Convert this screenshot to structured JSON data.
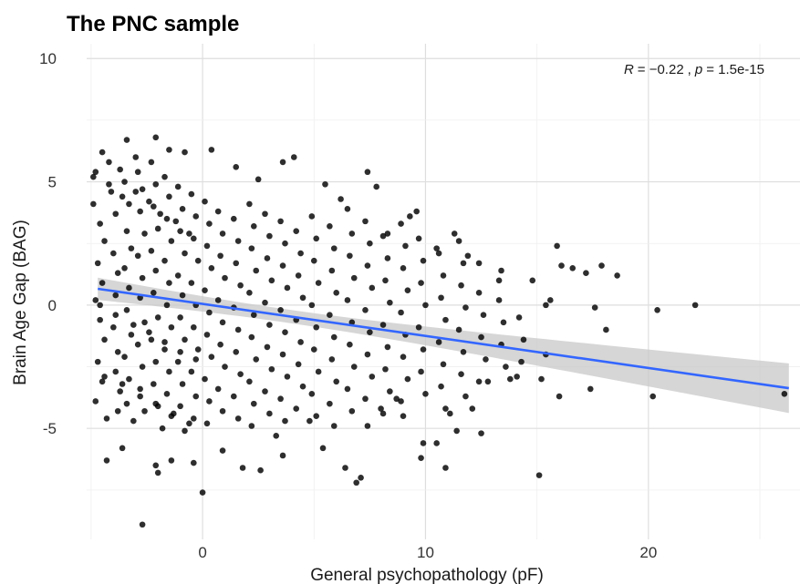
{
  "chart_data": {
    "type": "scatter",
    "title": "The PNC sample",
    "xlabel": "General psychopathology (pF)",
    "ylabel": "Brain Age Gap (BAG)",
    "xlim": [
      -5.2,
      26.8
    ],
    "ylim": [
      -9.5,
      10.6
    ],
    "xticks": [
      0,
      10,
      20
    ],
    "xtick_labels": [
      "0",
      "10",
      "20"
    ],
    "yticks": [
      -5,
      0,
      5,
      10
    ],
    "ytick_labels": [
      "-5",
      "0",
      "5",
      "10"
    ],
    "grid": true,
    "colors": {
      "points": "#000000",
      "line": "#3366ff",
      "band": "#c8c8c8"
    },
    "annotation": {
      "R_label": "R",
      "R_value": "= −0.22",
      "sep": ",",
      "p_label": "p",
      "p_value": "= 1.5e-15"
    },
    "regression": {
      "slope": -0.13,
      "intercept": 0.05,
      "x_range": [
        -4.7,
        26.3
      ]
    },
    "points": [
      [
        -4.5,
        6.2
      ],
      [
        -3.4,
        6.7
      ],
      [
        -2.1,
        6.8
      ],
      [
        -4.8,
        5.4
      ],
      [
        -4.2,
        5.8
      ],
      [
        -3.7,
        5.5
      ],
      [
        -3.0,
        6.0
      ],
      [
        -1.5,
        6.3
      ],
      [
        -0.8,
        6.2
      ],
      [
        0.4,
        6.3
      ],
      [
        1.5,
        5.6
      ],
      [
        2.5,
        5.1
      ],
      [
        3.6,
        5.8
      ],
      [
        4.1,
        6.0
      ],
      [
        5.5,
        4.9
      ],
      [
        6.2,
        4.3
      ],
      [
        7.4,
        5.4
      ],
      [
        7.8,
        4.8
      ],
      [
        8.3,
        2.9
      ],
      [
        9.3,
        3.6
      ],
      [
        9.6,
        3.8
      ],
      [
        10.5,
        2.3
      ],
      [
        11.3,
        2.9
      ],
      [
        11.9,
        2.0
      ],
      [
        12.4,
        1.7
      ],
      [
        13.3,
        1.0
      ],
      [
        13.4,
        1.4
      ],
      [
        14.8,
        1.0
      ],
      [
        15.4,
        0.0
      ],
      [
        15.6,
        0.2
      ],
      [
        15.9,
        2.4
      ],
      [
        16.1,
        1.6
      ],
      [
        16.6,
        1.5
      ],
      [
        17.2,
        1.3
      ],
      [
        17.9,
        1.6
      ],
      [
        18.6,
        1.2
      ],
      [
        17.6,
        -0.1
      ],
      [
        18.1,
        -1.0
      ],
      [
        20.4,
        -0.2
      ],
      [
        22.1,
        0.0
      ],
      [
        20.2,
        -3.7
      ],
      [
        26.1,
        -3.6
      ],
      [
        17.4,
        -3.4
      ],
      [
        16.0,
        -3.7
      ],
      [
        15.2,
        -3.0
      ],
      [
        15.4,
        -2.0
      ],
      [
        15.1,
        -6.9
      ],
      [
        14.1,
        -2.9
      ],
      [
        13.8,
        -3.0
      ],
      [
        12.5,
        -5.2
      ],
      [
        12.1,
        -4.2
      ],
      [
        11.4,
        -5.1
      ],
      [
        10.9,
        -6.6
      ],
      [
        10.5,
        -5.6
      ],
      [
        9.8,
        -6.2
      ],
      [
        9.9,
        -5.6
      ],
      [
        8.7,
        -3.8
      ],
      [
        8.0,
        -4.2
      ],
      [
        7.1,
        -7.0
      ],
      [
        6.4,
        -6.6
      ],
      [
        5.4,
        -5.8
      ],
      [
        4.8,
        -4.7
      ],
      [
        3.6,
        -6.1
      ],
      [
        2.6,
        -6.7
      ],
      [
        1.8,
        -6.6
      ],
      [
        0.9,
        -5.9
      ],
      [
        0.0,
        -7.6
      ],
      [
        -0.4,
        -6.4
      ],
      [
        -1.4,
        -6.3
      ],
      [
        -2.1,
        -6.5
      ],
      [
        -2.7,
        -8.9
      ],
      [
        -3.6,
        -5.8
      ],
      [
        -4.3,
        -6.3
      ],
      [
        -2.0,
        -6.8
      ],
      [
        6.9,
        -7.2
      ],
      [
        3.3,
        -5.3
      ],
      [
        7.4,
        -4.9
      ],
      [
        9.0,
        -4.5
      ],
      [
        11.1,
        -4.4
      ],
      [
        12.8,
        -3.1
      ],
      [
        -4.9,
        4.1
      ],
      [
        -4.6,
        3.3
      ],
      [
        -4.4,
        2.6
      ],
      [
        -4.7,
        1.7
      ],
      [
        -4.5,
        0.9
      ],
      [
        -4.8,
        0.2
      ],
      [
        -4.6,
        -0.6
      ],
      [
        -4.4,
        -1.4
      ],
      [
        -4.7,
        -2.3
      ],
      [
        -4.5,
        -3.1
      ],
      [
        -4.8,
        -3.9
      ],
      [
        -4.3,
        -4.6
      ],
      [
        -4.1,
        4.6
      ],
      [
        -3.9,
        3.7
      ],
      [
        -4.0,
        2.1
      ],
      [
        -3.8,
        1.3
      ],
      [
        -3.9,
        0.4
      ],
      [
        -4.0,
        -0.9
      ],
      [
        -3.8,
        -1.9
      ],
      [
        -3.9,
        -2.7
      ],
      [
        -3.7,
        -3.5
      ],
      [
        -3.8,
        -4.3
      ],
      [
        -3.5,
        5.0
      ],
      [
        -3.3,
        4.1
      ],
      [
        -3.4,
        3.0
      ],
      [
        -3.2,
        2.3
      ],
      [
        -3.5,
        1.5
      ],
      [
        -3.3,
        0.7
      ],
      [
        -3.4,
        -0.2
      ],
      [
        -3.2,
        -1.2
      ],
      [
        -3.5,
        -2.1
      ],
      [
        -3.3,
        -3.0
      ],
      [
        -3.4,
        -4.0
      ],
      [
        -3.1,
        -4.7
      ],
      [
        -2.9,
        5.4
      ],
      [
        -2.7,
        4.7
      ],
      [
        -2.8,
        3.8
      ],
      [
        -2.6,
        2.9
      ],
      [
        -2.9,
        2.0
      ],
      [
        -2.7,
        1.1
      ],
      [
        -2.8,
        0.3
      ],
      [
        -2.6,
        -0.7
      ],
      [
        -2.9,
        -1.6
      ],
      [
        -2.7,
        -2.5
      ],
      [
        -2.8,
        -3.4
      ],
      [
        -2.6,
        -4.3
      ],
      [
        -2.3,
        5.8
      ],
      [
        -2.1,
        4.9
      ],
      [
        -2.2,
        4.0
      ],
      [
        -2.0,
        3.1
      ],
      [
        -2.3,
        2.2
      ],
      [
        -2.1,
        1.4
      ],
      [
        -2.2,
        0.5
      ],
      [
        -2.0,
        -0.5
      ],
      [
        -2.3,
        -1.4
      ],
      [
        -2.1,
        -2.3
      ],
      [
        -2.2,
        -3.2
      ],
      [
        -2.0,
        -4.1
      ],
      [
        -1.8,
        -5.0
      ],
      [
        -1.7,
        5.2
      ],
      [
        -1.5,
        4.4
      ],
      [
        -1.6,
        3.5
      ],
      [
        -1.4,
        2.6
      ],
      [
        -1.7,
        1.8
      ],
      [
        -1.5,
        0.9
      ],
      [
        -1.6,
        0.0
      ],
      [
        -1.4,
        -0.9
      ],
      [
        -1.7,
        -1.8
      ],
      [
        -1.5,
        -2.7
      ],
      [
        -1.6,
        -3.6
      ],
      [
        -1.4,
        -4.5
      ],
      [
        -1.1,
        4.8
      ],
      [
        -0.9,
        3.9
      ],
      [
        -1.0,
        3.0
      ],
      [
        -0.8,
        2.1
      ],
      [
        -1.1,
        1.2
      ],
      [
        -0.9,
        0.4
      ],
      [
        -1.0,
        -0.5
      ],
      [
        -0.8,
        -1.4
      ],
      [
        -1.1,
        -2.3
      ],
      [
        -0.9,
        -3.2
      ],
      [
        -1.0,
        -4.1
      ],
      [
        -0.8,
        -5.1
      ],
      [
        -0.5,
        4.5
      ],
      [
        -0.3,
        3.6
      ],
      [
        -0.4,
        2.7
      ],
      [
        -0.2,
        1.8
      ],
      [
        -0.5,
        0.9
      ],
      [
        -0.3,
        0.0
      ],
      [
        -0.4,
        -0.9
      ],
      [
        -0.2,
        -1.8
      ],
      [
        -0.5,
        -2.7
      ],
      [
        -0.3,
        -3.7
      ],
      [
        -0.4,
        -4.6
      ],
      [
        0.1,
        4.2
      ],
      [
        0.3,
        3.3
      ],
      [
        0.2,
        2.4
      ],
      [
        0.4,
        1.5
      ],
      [
        0.1,
        0.6
      ],
      [
        0.3,
        -0.3
      ],
      [
        0.2,
        -1.2
      ],
      [
        0.4,
        -2.1
      ],
      [
        0.1,
        -3.0
      ],
      [
        0.3,
        -3.9
      ],
      [
        0.2,
        -4.8
      ],
      [
        0.7,
        3.8
      ],
      [
        0.9,
        2.9
      ],
      [
        0.8,
        2.0
      ],
      [
        1.0,
        1.1
      ],
      [
        0.7,
        0.2
      ],
      [
        0.9,
        -0.7
      ],
      [
        0.8,
        -1.6
      ],
      [
        1.0,
        -2.5
      ],
      [
        0.7,
        -3.4
      ],
      [
        0.9,
        -4.3
      ],
      [
        1.4,
        3.5
      ],
      [
        1.6,
        2.6
      ],
      [
        1.5,
        1.7
      ],
      [
        1.7,
        0.8
      ],
      [
        1.4,
        -0.1
      ],
      [
        1.6,
        -1.0
      ],
      [
        1.5,
        -1.9
      ],
      [
        1.7,
        -2.8
      ],
      [
        1.4,
        -3.7
      ],
      [
        1.6,
        -4.6
      ],
      [
        2.1,
        4.1
      ],
      [
        2.3,
        3.2
      ],
      [
        2.2,
        2.3
      ],
      [
        2.4,
        1.4
      ],
      [
        2.1,
        0.5
      ],
      [
        2.3,
        -0.4
      ],
      [
        2.2,
        -1.3
      ],
      [
        2.4,
        -2.2
      ],
      [
        2.1,
        -3.1
      ],
      [
        2.3,
        -4.0
      ],
      [
        2.2,
        -4.9
      ],
      [
        2.8,
        3.7
      ],
      [
        3.0,
        2.8
      ],
      [
        2.9,
        1.9
      ],
      [
        3.1,
        1.0
      ],
      [
        2.8,
        0.1
      ],
      [
        3.0,
        -0.8
      ],
      [
        2.9,
        -1.7
      ],
      [
        3.1,
        -2.6
      ],
      [
        2.8,
        -3.5
      ],
      [
        3.0,
        -4.4
      ],
      [
        3.5,
        3.4
      ],
      [
        3.7,
        2.5
      ],
      [
        3.6,
        1.6
      ],
      [
        3.8,
        0.7
      ],
      [
        3.5,
        -0.2
      ],
      [
        3.7,
        -1.1
      ],
      [
        3.6,
        -2.0
      ],
      [
        3.8,
        -2.9
      ],
      [
        3.5,
        -3.8
      ],
      [
        3.7,
        -4.7
      ],
      [
        4.2,
        3.0
      ],
      [
        4.4,
        2.1
      ],
      [
        4.3,
        1.2
      ],
      [
        4.5,
        0.3
      ],
      [
        4.2,
        -0.6
      ],
      [
        4.4,
        -1.5
      ],
      [
        4.3,
        -2.4
      ],
      [
        4.5,
        -3.3
      ],
      [
        4.2,
        -4.2
      ],
      [
        4.9,
        3.6
      ],
      [
        5.1,
        2.7
      ],
      [
        5.0,
        1.8
      ],
      [
        5.2,
        0.9
      ],
      [
        4.9,
        0.0
      ],
      [
        5.1,
        -0.9
      ],
      [
        5.0,
        -1.8
      ],
      [
        5.2,
        -2.7
      ],
      [
        4.9,
        -3.6
      ],
      [
        5.1,
        -4.5
      ],
      [
        5.7,
        3.2
      ],
      [
        5.9,
        2.3
      ],
      [
        5.8,
        1.4
      ],
      [
        6.0,
        0.5
      ],
      [
        5.7,
        -0.4
      ],
      [
        5.9,
        -1.3
      ],
      [
        5.8,
        -2.2
      ],
      [
        6.0,
        -3.1
      ],
      [
        5.7,
        -4.0
      ],
      [
        5.9,
        -4.9
      ],
      [
        6.5,
        3.9
      ],
      [
        6.7,
        2.9
      ],
      [
        6.6,
        2.0
      ],
      [
        6.8,
        1.1
      ],
      [
        6.5,
        0.2
      ],
      [
        6.7,
        -0.7
      ],
      [
        6.6,
        -1.6
      ],
      [
        6.8,
        -2.5
      ],
      [
        6.5,
        -3.4
      ],
      [
        6.7,
        -4.3
      ],
      [
        7.3,
        3.4
      ],
      [
        7.5,
        2.5
      ],
      [
        7.4,
        1.6
      ],
      [
        7.6,
        0.7
      ],
      [
        7.3,
        -0.2
      ],
      [
        7.5,
        -1.1
      ],
      [
        7.4,
        -2.0
      ],
      [
        7.6,
        -2.9
      ],
      [
        7.3,
        -3.8
      ],
      [
        8.1,
        2.8
      ],
      [
        8.3,
        1.9
      ],
      [
        8.2,
        1.0
      ],
      [
        8.4,
        0.1
      ],
      [
        8.1,
        -0.8
      ],
      [
        8.3,
        -1.7
      ],
      [
        8.2,
        -2.6
      ],
      [
        8.4,
        -3.5
      ],
      [
        8.1,
        -4.4
      ],
      [
        8.9,
        3.3
      ],
      [
        9.1,
        2.4
      ],
      [
        9.0,
        1.5
      ],
      [
        9.2,
        0.6
      ],
      [
        8.9,
        -0.3
      ],
      [
        9.1,
        -1.2
      ],
      [
        9.0,
        -2.1
      ],
      [
        9.2,
        -3.0
      ],
      [
        8.9,
        -3.9
      ],
      [
        9.7,
        2.7
      ],
      [
        9.9,
        1.8
      ],
      [
        9.8,
        0.9
      ],
      [
        10.0,
        0.0
      ],
      [
        9.7,
        -0.9
      ],
      [
        9.9,
        -1.8
      ],
      [
        9.8,
        -2.7
      ],
      [
        10.0,
        -3.6
      ],
      [
        10.6,
        2.1
      ],
      [
        10.8,
        1.2
      ],
      [
        10.7,
        0.3
      ],
      [
        10.9,
        -0.6
      ],
      [
        10.6,
        -1.5
      ],
      [
        10.8,
        -2.4
      ],
      [
        10.7,
        -3.3
      ],
      [
        10.9,
        -4.2
      ],
      [
        11.5,
        2.6
      ],
      [
        11.7,
        1.7
      ],
      [
        11.6,
        0.8
      ],
      [
        11.8,
        -0.1
      ],
      [
        11.5,
        -1.0
      ],
      [
        11.7,
        -1.9
      ],
      [
        11.6,
        -2.8
      ],
      [
        11.8,
        -3.7
      ],
      [
        12.4,
        0.5
      ],
      [
        12.6,
        -0.4
      ],
      [
        12.5,
        -1.3
      ],
      [
        12.7,
        -2.2
      ],
      [
        12.4,
        -3.1
      ],
      [
        13.3,
        0.2
      ],
      [
        13.5,
        -0.7
      ],
      [
        13.4,
        -1.6
      ],
      [
        13.6,
        -2.5
      ],
      [
        14.2,
        -0.5
      ],
      [
        14.4,
        -1.4
      ],
      [
        14.3,
        -2.3
      ],
      [
        -4.9,
        5.2
      ],
      [
        -4.2,
        4.9
      ],
      [
        -3.6,
        4.4
      ],
      [
        -3.0,
        4.6
      ],
      [
        -2.4,
        4.2
      ],
      [
        -1.9,
        3.7
      ],
      [
        -1.2,
        3.4
      ],
      [
        -0.6,
        2.9
      ],
      [
        -4.6,
        0.0
      ],
      [
        -3.9,
        -0.4
      ],
      [
        -3.1,
        -0.8
      ],
      [
        -2.4,
        -1.1
      ],
      [
        -1.7,
        -1.5
      ],
      [
        -1.0,
        -1.9
      ],
      [
        -0.3,
        -2.2
      ],
      [
        -4.4,
        -2.9
      ],
      [
        -3.6,
        -3.2
      ],
      [
        -2.8,
        -3.7
      ],
      [
        -2.1,
        -4.0
      ],
      [
        -1.3,
        -4.4
      ],
      [
        -0.6,
        -4.8
      ]
    ]
  }
}
